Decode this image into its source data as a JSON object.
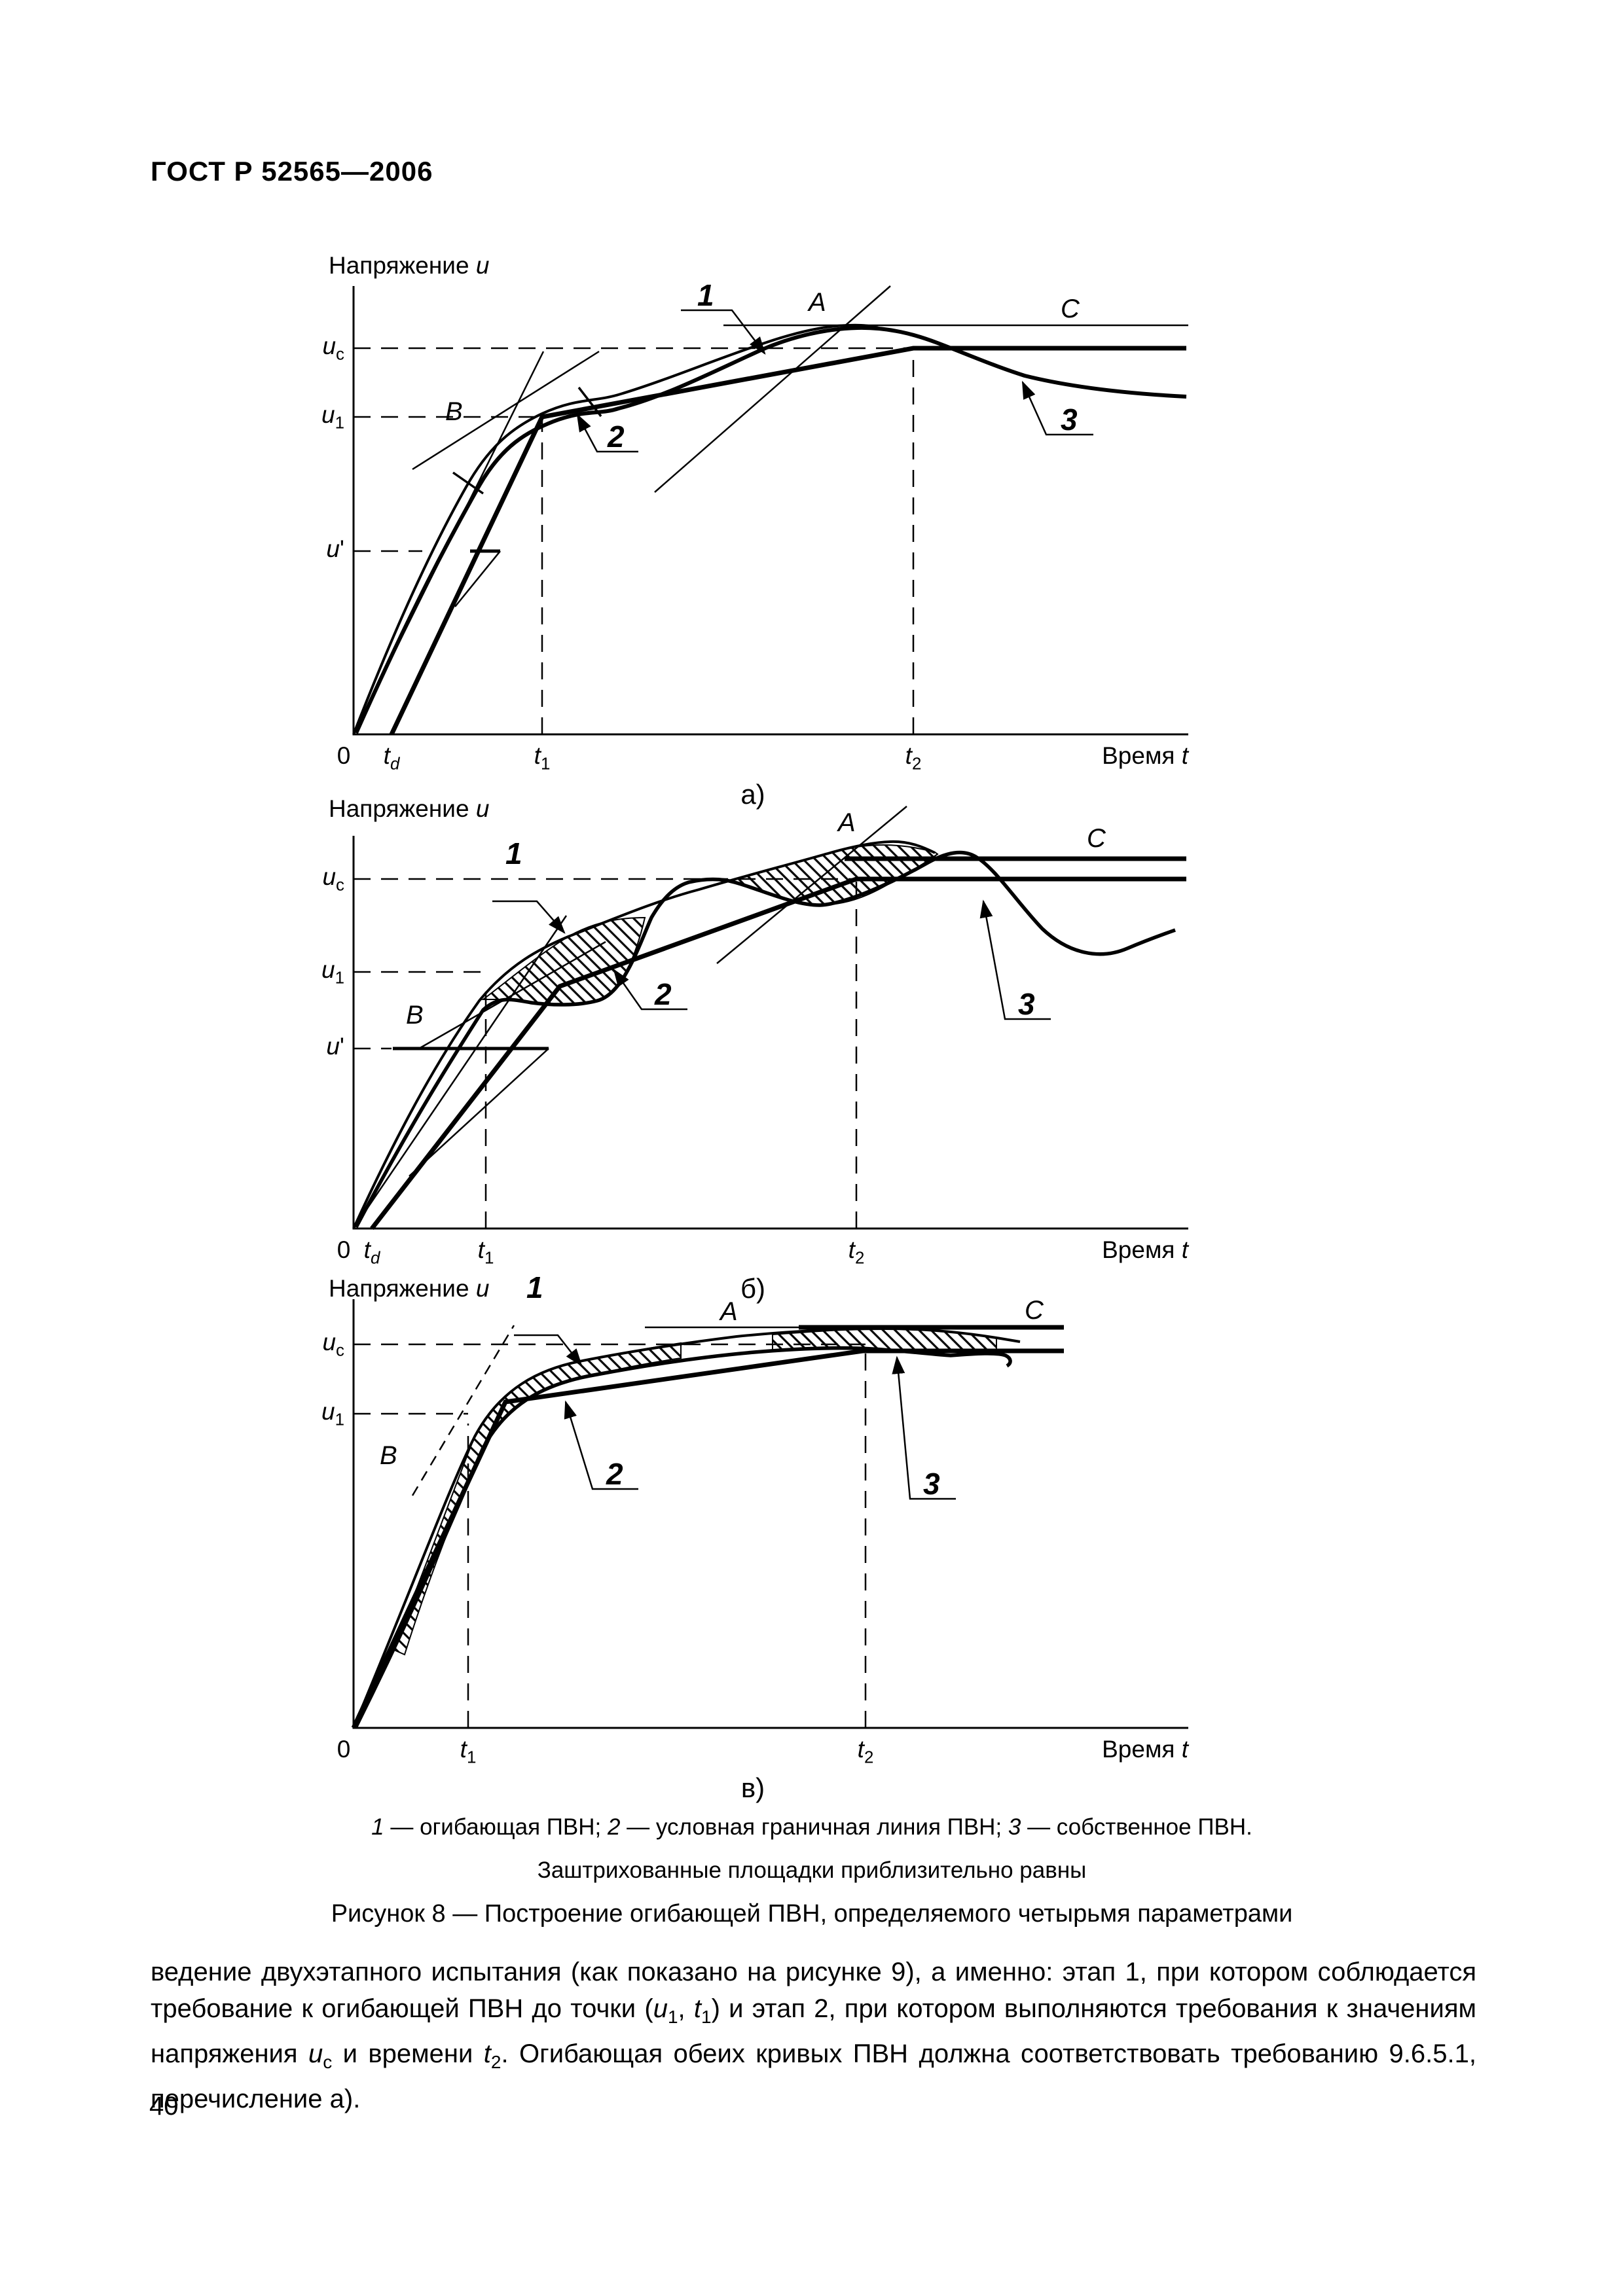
{
  "header": {
    "title": "ГОСТ Р 52565—2006"
  },
  "figure": {
    "graphs": [
      {
        "y_axis_label": "Напряжение *u*",
        "x_axis_label": "Время *t*",
        "origin_label": "0",
        "x_ticks": {
          "td": "*t_{d}*",
          "t1": "*t*_{1}",
          "t2": "*t*_{2}"
        },
        "y_ticks": {
          "uc": "*u*_{с}",
          "u1": "*u*_{1}",
          "up": "*u*'"
        },
        "curve_labels": {
          "c1": "1",
          "c2": "2",
          "c3": "3"
        },
        "point_labels": {
          "A": "A",
          "B": "B",
          "C": "C"
        },
        "sublabel": "а)"
      },
      {
        "y_axis_label": "Напряжение *u*",
        "x_axis_label": "Время *t*",
        "origin_label": "0",
        "x_ticks": {
          "td": "*t_{d}*",
          "t1": "*t*_{1}",
          "t2": "*t*_{2}"
        },
        "y_ticks": {
          "uc": "*u*_{с}",
          "u1": "*u*_{1}",
          "up": "*u*'"
        },
        "curve_labels": {
          "c1": "1",
          "c2": "2",
          "c3": "3"
        },
        "point_labels": {
          "A": "A",
          "B": "B",
          "C": "C"
        },
        "sublabel": "б)"
      },
      {
        "y_axis_label": "Напряжение *u*",
        "x_axis_label": "Время *t*",
        "origin_label": "0",
        "x_ticks": {
          "t1": "*t*_{1}",
          "t2": "*t*_{2}"
        },
        "y_ticks": {
          "uc": "*u*_{с}",
          "u1": "*u*_{1}"
        },
        "curve_labels": {
          "c1": "1",
          "c2": "2",
          "c3": "3"
        },
        "point_labels": {
          "A": "A",
          "B": "B",
          "C": "C"
        },
        "sublabel": "в)"
      }
    ],
    "legend_line": "*1* — огибающая ПВН; *2* — условная граничная линия ПВН; *3* — собственное ПВН.",
    "note_line": "Заштрихованные  площадки  приблизительно  равны",
    "caption": "Рисунок 8 — Построение  огибающей  ПВН,  определяемого  четырьмя  параметрами"
  },
  "body_text": "ведение двухэтапного испытания (как показано на рисунке 9), а именно: этап 1, при котором соблюдается требование к огибающей ПВН до точки (*u*_{1}, *t*_{1}) и этап 2, при котором выполняются требования к значениям напряжения *u*_{с}  и времени *t*_{2}. Огибающая обеих кривых ПВН должна соответствовать требованию 9.6.5.1, перечисление  а).",
  "page_number": "40"
}
